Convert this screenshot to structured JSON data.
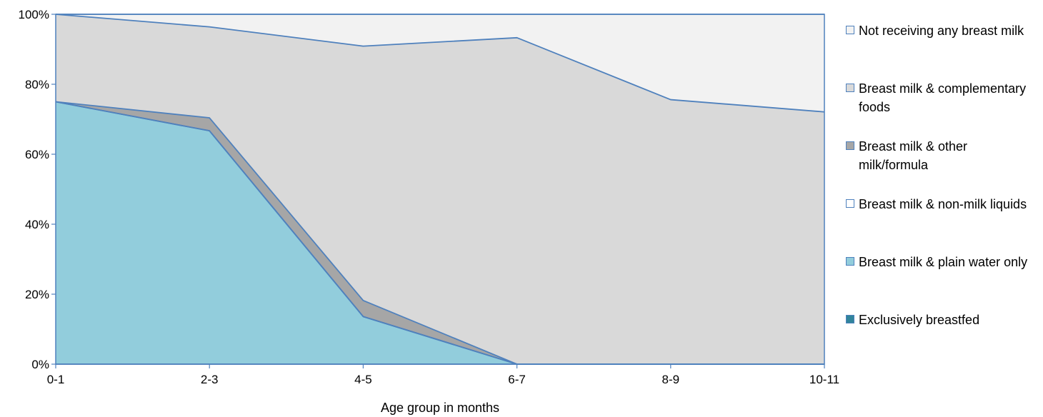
{
  "chart_data": {
    "type": "area",
    "stacked": true,
    "percent": true,
    "x": [
      "0-1",
      "2-3",
      "4-5",
      "6-7",
      "8-9",
      "10-11"
    ],
    "xlabel": "Age group in months",
    "ylabel": "",
    "ylim": [
      0,
      100
    ],
    "yticks": [
      "0%",
      "20%",
      "40%",
      "60%",
      "80%",
      "100%"
    ],
    "grid": false,
    "legend_position": "right",
    "series": [
      {
        "name": "Exclusively breastfed",
        "color": "#31849b",
        "values": [
          0,
          0,
          0,
          0,
          0,
          0
        ]
      },
      {
        "name": "Breast milk & plain water only",
        "color": "#92cddc",
        "values": [
          75,
          66.7,
          13.6,
          0,
          0,
          0
        ]
      },
      {
        "name": "Breast milk & non-milk liquids",
        "color": "#ffffff",
        "values": [
          0,
          0,
          0,
          0,
          0,
          0
        ]
      },
      {
        "name": "Breast milk & other milk/formula",
        "color": "#a6a6a6",
        "values": [
          0,
          3.7,
          4.6,
          0,
          0,
          0
        ]
      },
      {
        "name": "Breast milk & complementary foods",
        "color": "#d9d9d9",
        "values": [
          25,
          26,
          72.7,
          93.3,
          75.6,
          72.1
        ]
      },
      {
        "name": "Not receiving any breast milk",
        "color": "#f2f2f2",
        "values": [
          0,
          3.6,
          9.1,
          6.7,
          24.4,
          27.9
        ]
      }
    ],
    "outline_color": "#4f81bd"
  },
  "legend": [
    {
      "label": "Not receiving any breast milk",
      "color": "#f2f2f2"
    },
    {
      "label": "Breast milk & complementary foods",
      "color": "#d9d9d9"
    },
    {
      "label": "Breast milk & other milk/formula",
      "color": "#a6a6a6"
    },
    {
      "label": "Breast milk & non-milk liquids",
      "color": "#ffffff"
    },
    {
      "label": "Breast milk & plain water only",
      "color": "#92cddc"
    },
    {
      "label": "Exclusively breastfed",
      "color": "#31849b"
    }
  ]
}
